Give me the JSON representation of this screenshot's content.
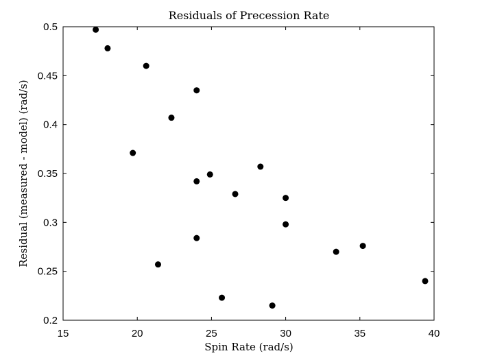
{
  "chart_data": {
    "type": "scatter",
    "title": "Residuals of Precession Rate",
    "xlabel": "Spin Rate (rad/s)",
    "ylabel": "Residual (measured - model) (rad/s)",
    "xlim": [
      15,
      40
    ],
    "ylim": [
      0.2,
      0.5
    ],
    "xticks": [
      15,
      20,
      25,
      30,
      35,
      40
    ],
    "xtick_labels": [
      "15",
      "20",
      "25",
      "30",
      "35",
      "40"
    ],
    "yticks": [
      0.2,
      0.25,
      0.3,
      0.35,
      0.4,
      0.45,
      0.5
    ],
    "ytick_labels": [
      "0.2",
      "0.25",
      "0.3",
      "0.35",
      "0.4",
      "0.45",
      "0.5"
    ],
    "grid": false,
    "marker_color": "#000000",
    "series": [
      {
        "points": [
          {
            "x": 17.2,
            "y": 0.497
          },
          {
            "x": 18.0,
            "y": 0.478
          },
          {
            "x": 19.7,
            "y": 0.371
          },
          {
            "x": 20.6,
            "y": 0.46
          },
          {
            "x": 21.4,
            "y": 0.257
          },
          {
            "x": 22.3,
            "y": 0.407
          },
          {
            "x": 24.0,
            "y": 0.435
          },
          {
            "x": 24.0,
            "y": 0.342
          },
          {
            "x": 24.0,
            "y": 0.284
          },
          {
            "x": 24.9,
            "y": 0.349
          },
          {
            "x": 25.7,
            "y": 0.223
          },
          {
            "x": 26.6,
            "y": 0.329
          },
          {
            "x": 28.3,
            "y": 0.357
          },
          {
            "x": 29.1,
            "y": 0.215
          },
          {
            "x": 30.0,
            "y": 0.325
          },
          {
            "x": 30.0,
            "y": 0.298
          },
          {
            "x": 33.4,
            "y": 0.27
          },
          {
            "x": 35.2,
            "y": 0.276
          },
          {
            "x": 39.4,
            "y": 0.24
          }
        ]
      }
    ]
  }
}
